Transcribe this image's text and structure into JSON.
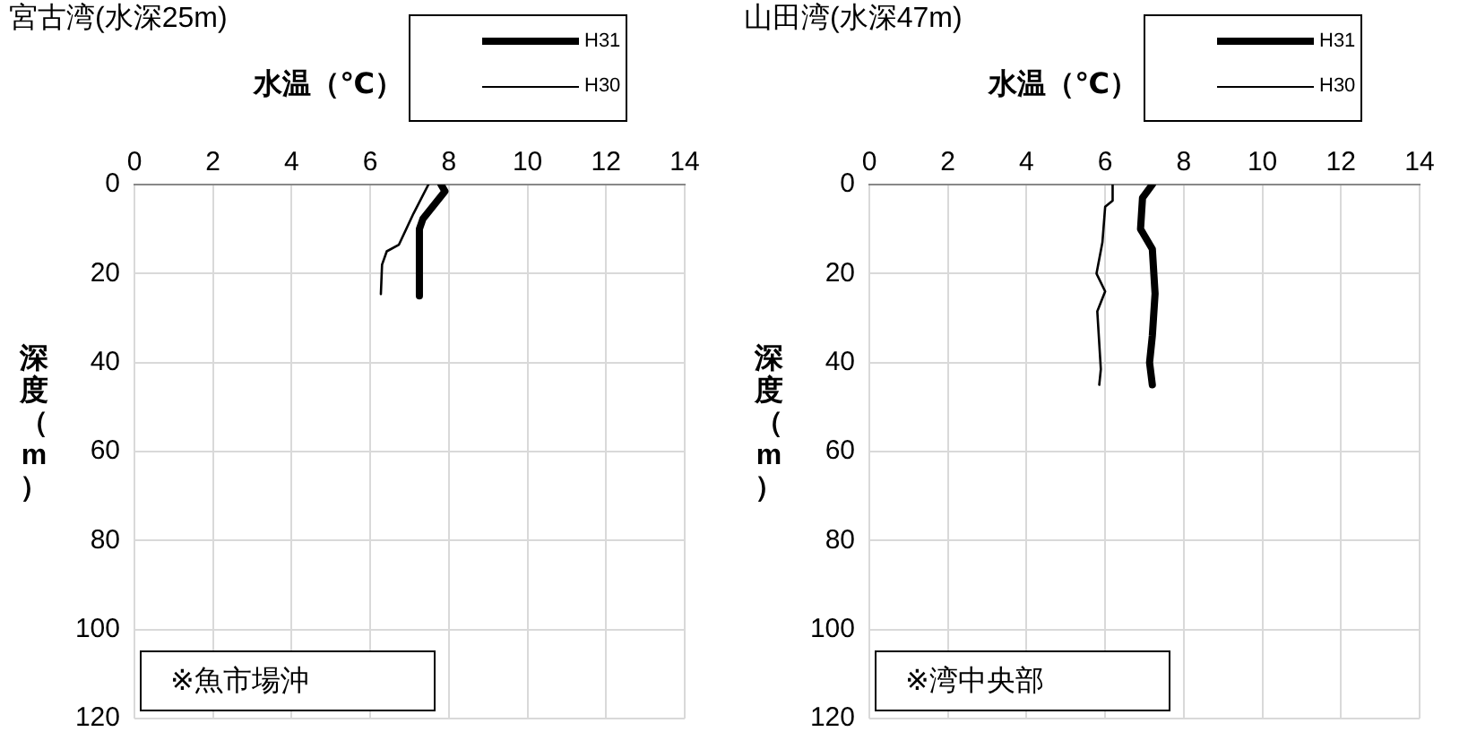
{
  "chart_data": [
    {
      "type": "line",
      "title": "宮古湾(水深25m)",
      "xlabel": "水温（℃）",
      "ylabel": "深度（m）",
      "xlim": [
        0,
        14
      ],
      "xticks": [
        0,
        2,
        4,
        6,
        8,
        10,
        12,
        14
      ],
      "ylim": [
        120,
        0
      ],
      "yticks": [
        0,
        20,
        40,
        60,
        80,
        100,
        120
      ],
      "grid": true,
      "legend": "top right",
      "annotations": [
        "※魚市場沖"
      ],
      "series": [
        {
          "name": "H31",
          "color": "#000000",
          "x": [
            7.8,
            7.9,
            7.34,
            7.25,
            7.25
          ],
          "values": [
            0,
            1.5,
            7.7,
            10,
            25
          ]
        },
        {
          "name": "H30",
          "color": "#000000",
          "x": [
            7.48,
            7.1,
            6.73,
            6.42,
            6.3,
            6.27
          ],
          "values": [
            0,
            6.5,
            13.5,
            15,
            18,
            24.6
          ]
        }
      ]
    },
    {
      "type": "line",
      "title": "山田湾(水深47m)",
      "xlabel": "水温（℃）",
      "ylabel": "深度（m）",
      "xlim": [
        0,
        14
      ],
      "xticks": [
        0,
        2,
        4,
        6,
        8,
        10,
        12,
        14
      ],
      "ylim": [
        120,
        0
      ],
      "yticks": [
        0,
        20,
        40,
        60,
        80,
        100,
        120
      ],
      "grid": true,
      "legend": "top right",
      "annotations": [
        "※湾中央部"
      ],
      "series": [
        {
          "name": "H31",
          "color": "#000000",
          "x": [
            7.2,
            6.95,
            6.9,
            7.2,
            7.27,
            7.2,
            7.13,
            7.2
          ],
          "values": [
            0,
            3,
            10,
            14.5,
            24.5,
            34,
            40,
            45
          ]
        },
        {
          "name": "H30",
          "color": "#000000",
          "x": [
            6.19,
            6.19,
            6.0,
            5.93,
            5.78,
            6.0,
            5.8,
            5.89,
            5.85
          ],
          "values": [
            0,
            3.6,
            5,
            13,
            20,
            24,
            28.5,
            41.5,
            45
          ]
        }
      ]
    }
  ]
}
